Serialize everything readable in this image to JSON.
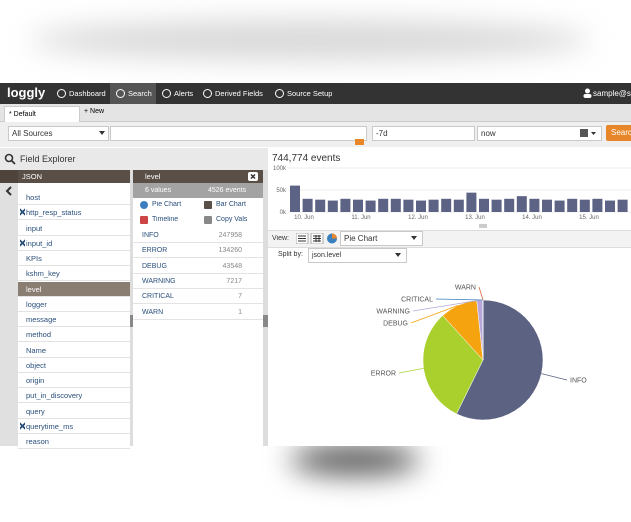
{
  "nav": {
    "logo": "loggly",
    "items": [
      "Dashboard",
      "Search",
      "Alerts",
      "Derived Fields",
      "Source Setup"
    ],
    "active": "Search",
    "user": "sample@sa"
  },
  "tabs": {
    "items": [
      "* Default"
    ],
    "new": "+ New"
  },
  "search_bar": {
    "source": "All Sources",
    "from": "-7d",
    "to": "now",
    "button": "Search"
  },
  "field_explorer": {
    "title": "Field Explorer",
    "root": "JSON",
    "fields": [
      {
        "name": "host",
        "removable": false,
        "selected": false
      },
      {
        "name": "http_resp_status",
        "removable": true,
        "selected": false
      },
      {
        "name": "input",
        "removable": false,
        "selected": false
      },
      {
        "name": "input_id",
        "removable": true,
        "selected": false
      },
      {
        "name": "KPIs",
        "removable": false,
        "selected": false
      },
      {
        "name": "kshm_key",
        "removable": false,
        "selected": false
      },
      {
        "name": "level",
        "removable": false,
        "selected": true
      },
      {
        "name": "logger",
        "removable": false,
        "selected": false
      },
      {
        "name": "message",
        "removable": false,
        "selected": false
      },
      {
        "name": "method",
        "removable": false,
        "selected": false
      },
      {
        "name": "Name",
        "removable": false,
        "selected": false
      },
      {
        "name": "object",
        "removable": false,
        "selected": false
      },
      {
        "name": "origin",
        "removable": false,
        "selected": false
      },
      {
        "name": "put_in_discovery",
        "removable": false,
        "selected": false
      },
      {
        "name": "query",
        "removable": false,
        "selected": false
      },
      {
        "name": "querytime_ms",
        "removable": true,
        "selected": false
      },
      {
        "name": "reason",
        "removable": false,
        "selected": false
      }
    ]
  },
  "field_detail": {
    "title": "level",
    "values_count": "6 values",
    "events_count": "4526 events",
    "actions": [
      "Pie Chart",
      "Bar Chart",
      "Timeline",
      "Copy Vals"
    ],
    "rows": [
      {
        "name": "INFO",
        "count": 247958,
        "color": "#5b6282"
      },
      {
        "name": "ERROR",
        "count": 134260,
        "color": "#a9d02c"
      },
      {
        "name": "DEBUG",
        "count": 43548,
        "color": "#f5a30f"
      },
      {
        "name": "WARNING",
        "count": 7217,
        "color": "#b8a7d8"
      },
      {
        "name": "CRITICAL",
        "count": 7,
        "color": "#3a7fc0"
      },
      {
        "name": "WARN",
        "count": 1,
        "color": "#e0663a"
      }
    ]
  },
  "results": {
    "total": "744,774 events",
    "histogram": {
      "color": "#5c6384",
      "ylim": [
        0,
        100000
      ],
      "yticks": [
        {
          "value": 0,
          "label": "0k"
        },
        {
          "value": 50000,
          "label": "50k"
        },
        {
          "value": 100000,
          "label": "100k"
        }
      ],
      "values": [
        60000,
        30000,
        28000,
        26000,
        30000,
        28000,
        26000,
        30000,
        30000,
        28000,
        26000,
        28000,
        30000,
        28000,
        44000,
        30000,
        28000,
        30000,
        36000,
        30000,
        28000,
        26000,
        30000,
        28000,
        30000,
        26000,
        28000
      ],
      "x_labels": [
        "10. Jun",
        "11. Jun",
        "12. Jun",
        "13. Jun",
        "14. Jun",
        "15. Jun"
      ]
    },
    "view_label": "View:",
    "view_mode": "Pie Chart",
    "split_label": "Split by:",
    "split_field": "json.level"
  }
}
